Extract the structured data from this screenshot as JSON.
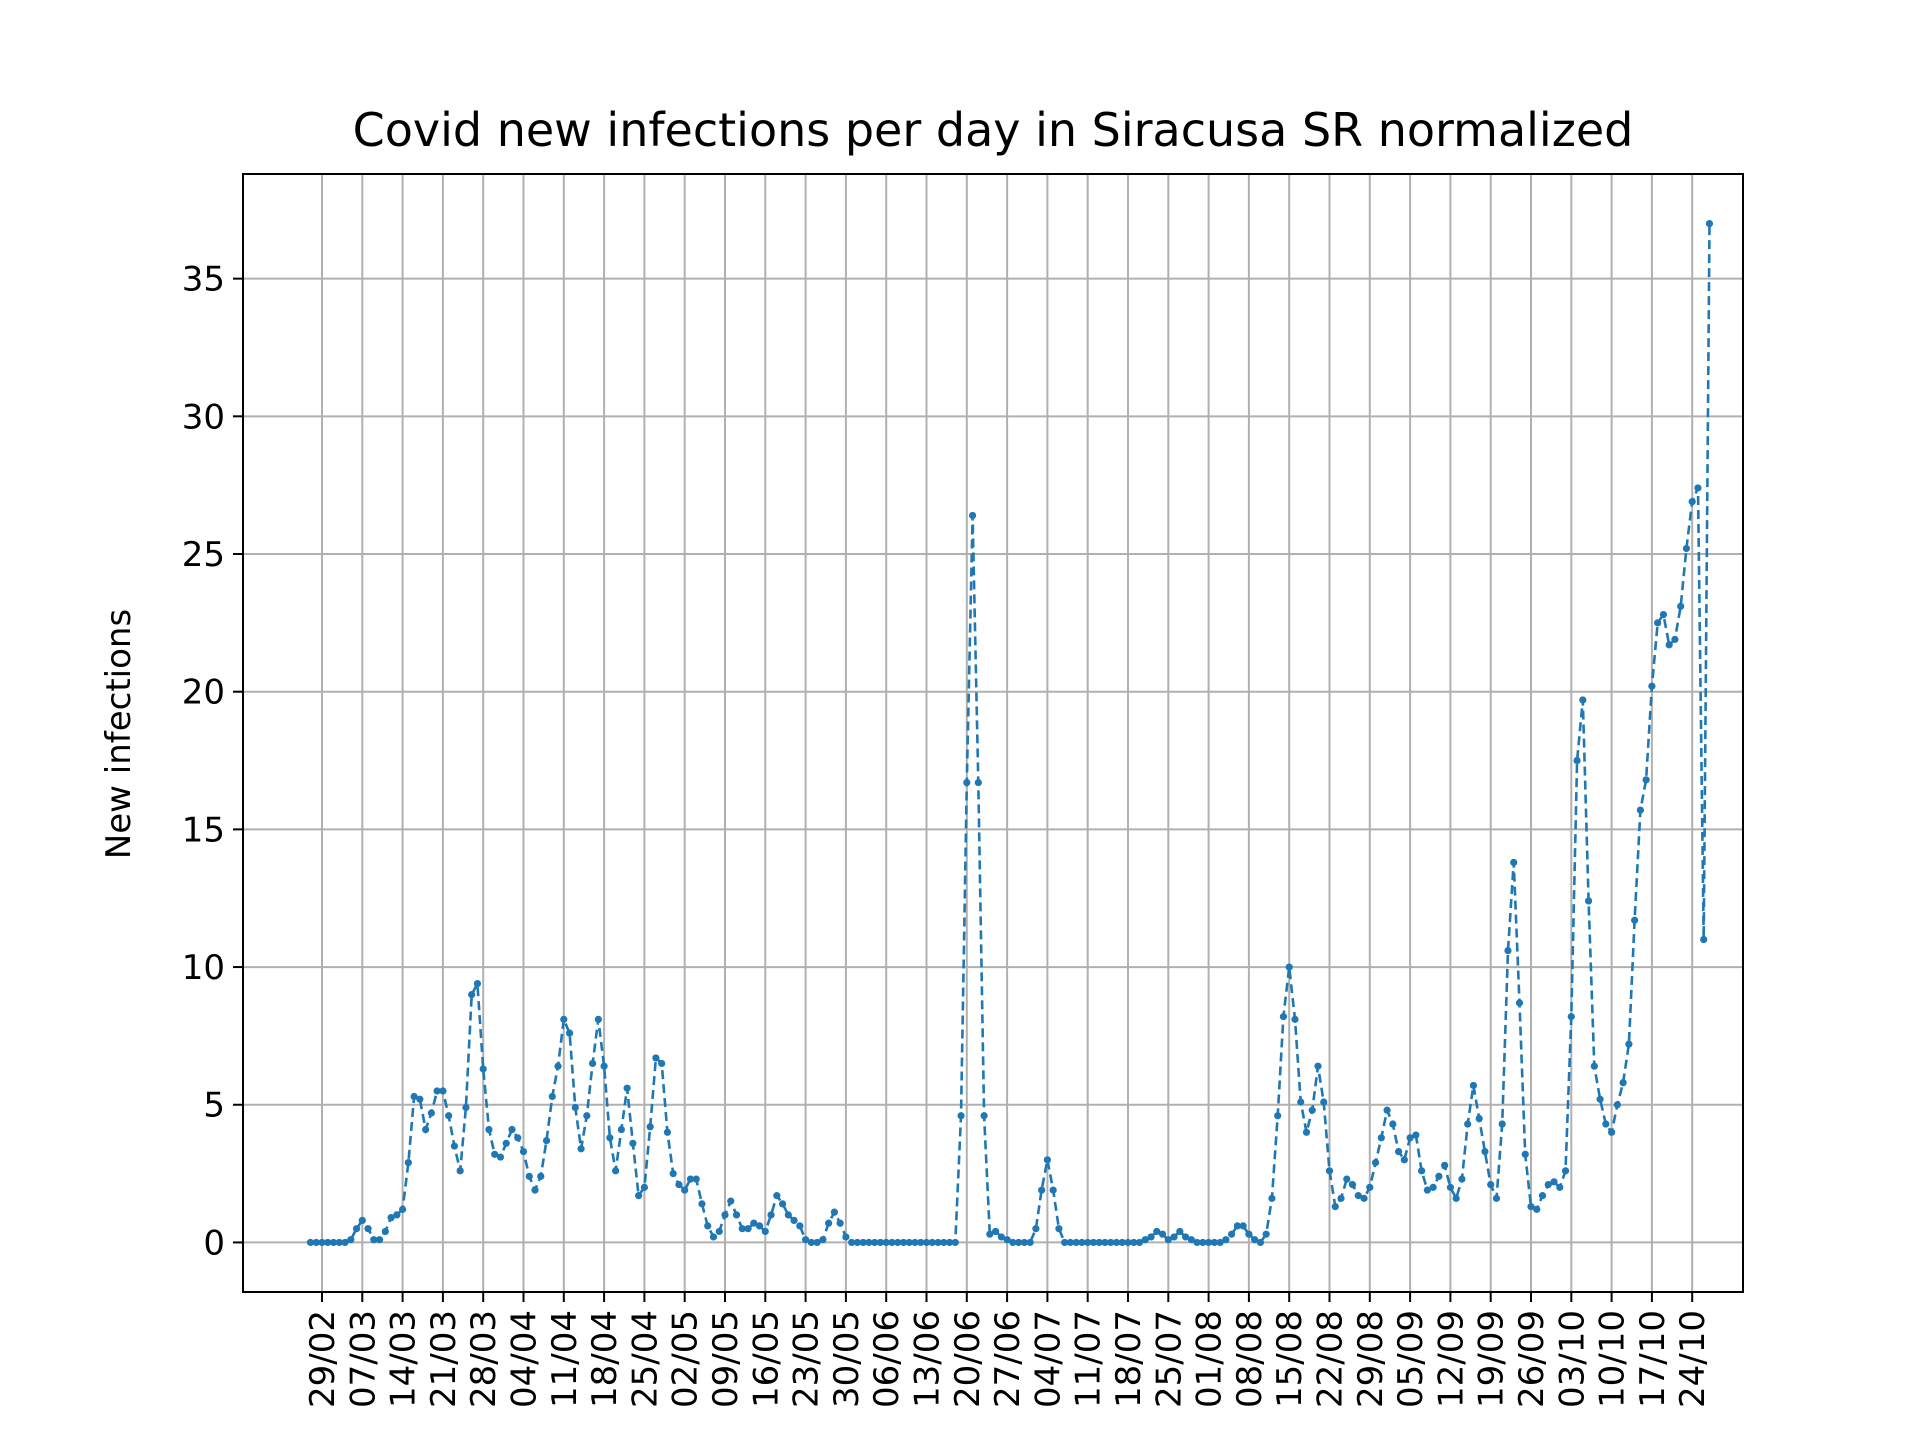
{
  "chart_data": {
    "type": "line",
    "title": "Covid new infections per day in Siracusa SR normalized",
    "xlabel": "",
    "ylabel": "New infections",
    "ylim": [
      -1.8,
      38.8
    ],
    "yticks": [
      0,
      5,
      10,
      15,
      20,
      25,
      30,
      35
    ],
    "grid": true,
    "line_style": "dashed",
    "marker": "dot",
    "colors": {
      "line": "#1f77b4",
      "grid": "#b0b0b0",
      "axes": "#000000"
    },
    "x_tick_labels": [
      "29/02",
      "07/03",
      "14/03",
      "21/03",
      "28/03",
      "04/04",
      "11/04",
      "18/04",
      "25/04",
      "02/05",
      "09/05",
      "16/05",
      "23/05",
      "30/05",
      "06/06",
      "13/06",
      "20/06",
      "27/06",
      "04/07",
      "11/07",
      "18/07",
      "25/07",
      "01/08",
      "08/08",
      "15/08",
      "22/08",
      "29/08",
      "05/09",
      "12/09",
      "19/09",
      "26/09",
      "03/10",
      "10/10",
      "17/10",
      "24/10"
    ],
    "x_start_date": "27/02",
    "series": [
      {
        "name": "",
        "values": [
          0,
          0,
          0,
          0,
          0,
          0,
          0,
          0.1,
          0.5,
          0.8,
          0.5,
          0.1,
          0.1,
          0.4,
          0.9,
          1.0,
          1.2,
          2.9,
          5.3,
          5.2,
          4.1,
          4.7,
          5.5,
          5.5,
          4.6,
          3.5,
          2.6,
          4.9,
          9.0,
          9.4,
          6.3,
          4.1,
          3.2,
          3.1,
          3.6,
          4.1,
          3.8,
          3.3,
          2.4,
          1.9,
          2.4,
          3.7,
          5.3,
          6.4,
          8.1,
          7.6,
          4.9,
          3.4,
          4.6,
          6.5,
          8.1,
          6.4,
          3.8,
          2.6,
          4.1,
          5.6,
          3.6,
          1.7,
          2.0,
          4.2,
          6.7,
          6.5,
          4.0,
          2.5,
          2.1,
          1.9,
          2.3,
          2.3,
          1.4,
          0.6,
          0.2,
          0.4,
          1.0,
          1.5,
          1.0,
          0.5,
          0.5,
          0.7,
          0.6,
          0.4,
          1.0,
          1.7,
          1.4,
          1.0,
          0.8,
          0.6,
          0.1,
          0,
          0,
          0.1,
          0.7,
          1.1,
          0.7,
          0.2,
          0,
          0,
          0,
          0,
          0,
          0,
          0,
          0,
          0,
          0,
          0,
          0,
          0,
          0,
          0,
          0,
          0,
          0,
          0,
          4.6,
          16.7,
          26.4,
          16.7,
          4.6,
          0.3,
          0.4,
          0.2,
          0.1,
          0,
          0,
          0,
          0,
          0.5,
          1.9,
          3.0,
          1.9,
          0.5,
          0,
          0,
          0,
          0,
          0,
          0,
          0,
          0,
          0,
          0,
          0,
          0,
          0,
          0,
          0.1,
          0.2,
          0.4,
          0.3,
          0.1,
          0.2,
          0.4,
          0.2,
          0.1,
          0,
          0,
          0,
          0,
          0,
          0.1,
          0.3,
          0.6,
          0.6,
          0.3,
          0.1,
          0,
          0.3,
          1.6,
          4.6,
          8.2,
          10.0,
          8.1,
          5.1,
          4.0,
          4.8,
          6.4,
          5.1,
          2.6,
          1.3,
          1.6,
          2.3,
          2.1,
          1.7,
          1.6,
          2.0,
          2.9,
          3.8,
          4.8,
          4.3,
          3.3,
          3.0,
          3.8,
          3.9,
          2.6,
          1.9,
          2.0,
          2.4,
          2.8,
          2.0,
          1.6,
          2.3,
          4.3,
          5.7,
          4.5,
          3.3,
          2.1,
          1.6,
          4.3,
          10.6,
          13.8,
          8.7,
          3.2,
          1.3,
          1.2,
          1.7,
          2.1,
          2.2,
          2.0,
          2.6,
          8.2,
          17.5,
          19.7,
          12.4,
          6.4,
          5.2,
          4.3,
          4.0,
          5.0,
          5.8,
          7.2,
          11.7,
          15.7,
          16.8,
          20.2,
          22.5,
          22.8,
          21.7,
          21.9,
          23.1,
          25.2,
          26.9,
          27.4,
          11.0,
          37.0
        ]
      }
    ]
  }
}
